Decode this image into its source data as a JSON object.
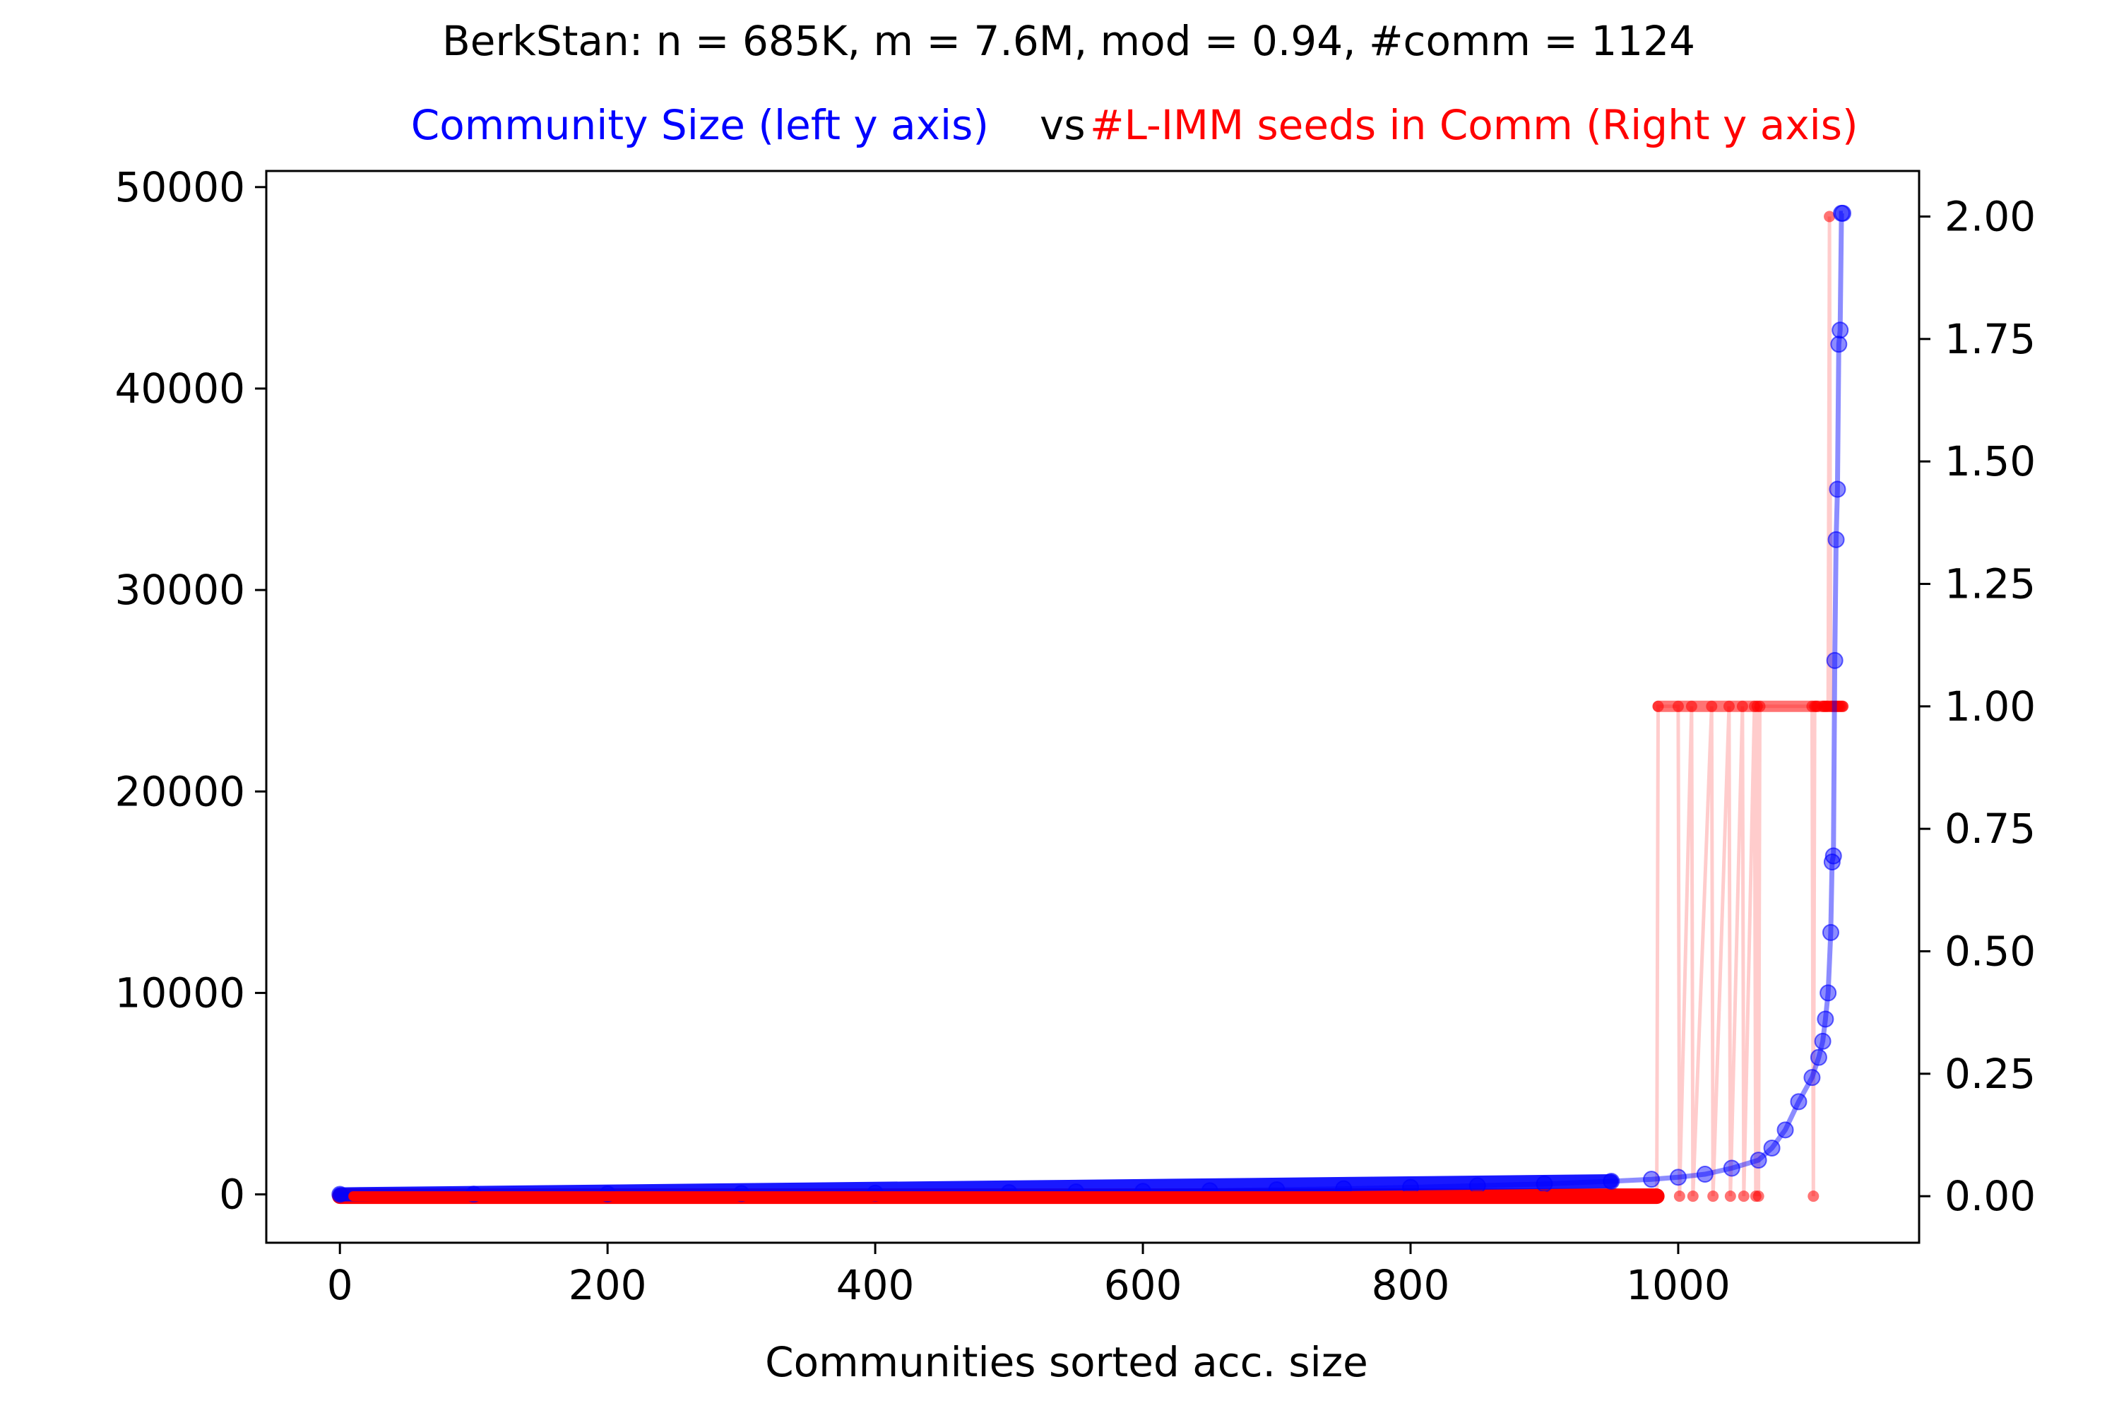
{
  "chart_data": {
    "type": "line",
    "title": "BerkStan: n = 685K, m = 7.6M, mod = 0.94, #comm = 1124",
    "subtitle_left": "Community Size (left y axis)",
    "subtitle_mid": "vs",
    "subtitle_right": "#L-IMM seeds in Comm (Right y axis)",
    "xlabel": "Communities sorted acc. size",
    "xlim": [
      -55,
      1180
    ],
    "ylim_left": [
      -2400,
      50800
    ],
    "ylim_right": [
      -0.095,
      2.093
    ],
    "x_ticks": [
      "0",
      "200",
      "400",
      "600",
      "800",
      "1000"
    ],
    "y_left_ticks": [
      "0",
      "10000",
      "20000",
      "30000",
      "40000",
      "50000"
    ],
    "y_right_ticks": [
      "0.00",
      "0.25",
      "0.50",
      "0.75",
      "1.00",
      "1.25",
      "1.50",
      "1.75",
      "2.00"
    ],
    "grid": false,
    "colors": {
      "size_series": "#0000ff",
      "seeds_series": "#ff0000"
    },
    "series": [
      {
        "name": "Community Size (left y axis)",
        "axis": "left",
        "x": [
          0,
          100,
          200,
          300,
          400,
          500,
          550,
          600,
          650,
          700,
          750,
          800,
          850,
          900,
          950,
          980,
          1000,
          1020,
          1040,
          1060,
          1070,
          1080,
          1090,
          1100,
          1105,
          1108,
          1110,
          1112,
          1114,
          1115,
          1116,
          1117,
          1118,
          1119,
          1120,
          1121,
          1122,
          1123
        ],
        "values": [
          1,
          10,
          20,
          40,
          60,
          90,
          120,
          150,
          180,
          230,
          280,
          350,
          430,
          520,
          650,
          750,
          850,
          1000,
          1300,
          1700,
          2300,
          3200,
          4600,
          5800,
          6800,
          7600,
          8700,
          10000,
          13000,
          16500,
          16800,
          26500,
          32500,
          35000,
          42200,
          42900,
          48700,
          48700
        ]
      },
      {
        "name": "#L-IMM seeds in Comm (Right y axis)",
        "axis": "right",
        "x": [
          0,
          984,
          985,
          1000,
          1001,
          1010,
          1011,
          1025,
          1026,
          1038,
          1039,
          1048,
          1049,
          1057,
          1058,
          1059,
          1060,
          1061,
          1100,
          1101,
          1102,
          1103,
          1104,
          1108,
          1109,
          1110,
          1111,
          1112,
          1113,
          1114,
          1115,
          1116,
          1117,
          1118,
          1119,
          1120,
          1121,
          1122,
          1123
        ],
        "values": [
          0,
          0,
          1,
          1,
          0,
          1,
          0,
          1,
          0,
          1,
          0,
          1,
          0,
          1,
          0,
          1,
          0,
          1,
          1,
          0,
          1,
          1,
          1,
          1,
          1,
          1,
          1,
          1,
          2,
          1,
          1,
          1,
          1,
          1,
          1,
          1,
          1,
          1,
          1
        ]
      }
    ]
  }
}
